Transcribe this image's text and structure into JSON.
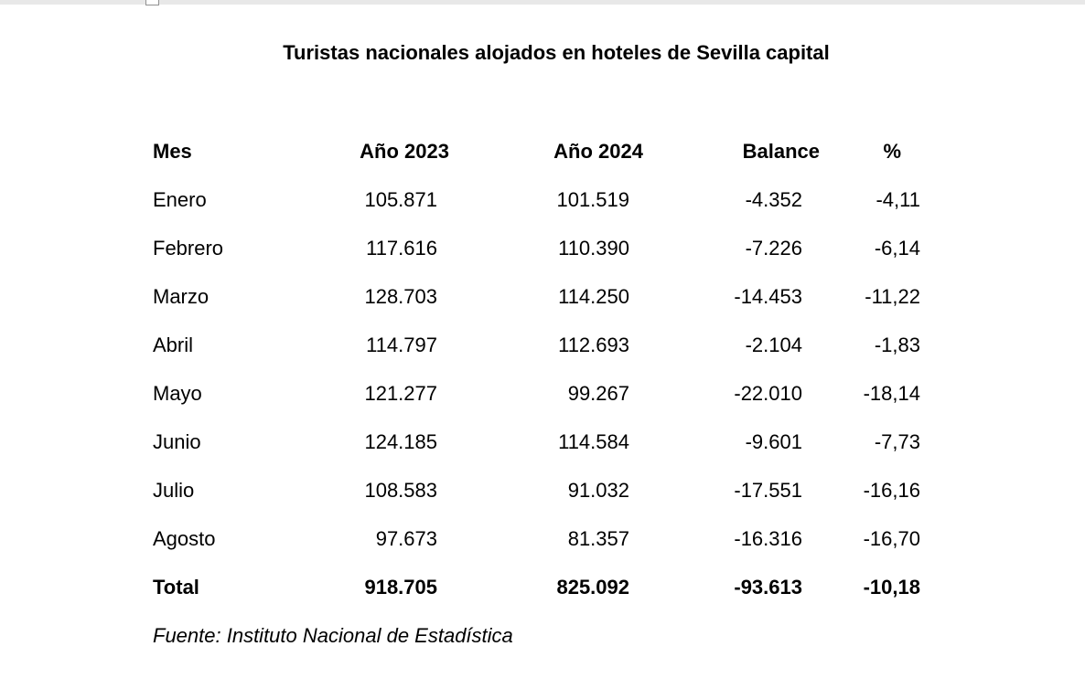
{
  "document": {
    "title": "Turistas nacionales alojados en hoteles de Sevilla capital",
    "source_note": "Fuente: Instituto Nacional de Estadística"
  },
  "chrome": {
    "top_bar_color": "#e8e8e8",
    "handle_border_color": "#919191"
  },
  "table": {
    "columns": [
      "Mes",
      "Año 2023",
      "Año 2024",
      "Balance",
      "%"
    ],
    "rows": [
      {
        "cells": [
          "Enero",
          "105.871",
          "101.519",
          "-4.352",
          "-4,11"
        ]
      },
      {
        "cells": [
          "Febrero",
          "117.616",
          "110.390",
          "-7.226",
          "-6,14"
        ]
      },
      {
        "cells": [
          "Marzo",
          "128.703",
          "114.250",
          "-14.453",
          "-11,22"
        ]
      },
      {
        "cells": [
          "Abril",
          "114.797",
          "112.693",
          "-2.104",
          "-1,83"
        ]
      },
      {
        "cells": [
          "Mayo",
          "121.277",
          "99.267",
          "-22.010",
          "-18,14"
        ]
      },
      {
        "cells": [
          "Junio",
          "124.185",
          "114.584",
          "-9.601",
          "-7,73"
        ]
      },
      {
        "cells": [
          "Julio",
          "108.583",
          "91.032",
          "-17.551",
          "-16,16"
        ]
      },
      {
        "cells": [
          "Agosto",
          "97.673",
          "81.357",
          "-16.316",
          "-16,70"
        ]
      }
    ],
    "total_row": {
      "cells": [
        "Total",
        "918.705",
        "825.092",
        "-93.613",
        "-10,18"
      ]
    }
  },
  "chart_data": {
    "type": "table",
    "title": "Turistas nacionales alojados en hoteles de Sevilla capital",
    "columns": [
      "Mes",
      "Año 2023",
      "Año 2024",
      "Balance",
      "%"
    ],
    "categories": [
      "Enero",
      "Febrero",
      "Marzo",
      "Abril",
      "Mayo",
      "Junio",
      "Julio",
      "Agosto"
    ],
    "series": [
      {
        "name": "Año 2023",
        "values": [
          105871,
          117616,
          128703,
          114797,
          121277,
          124185,
          108583,
          97673
        ]
      },
      {
        "name": "Año 2024",
        "values": [
          101519,
          110390,
          114250,
          112693,
          99267,
          114584,
          91032,
          81357
        ]
      },
      {
        "name": "Balance",
        "values": [
          -4352,
          -7226,
          -14453,
          -2104,
          -22010,
          -9601,
          -17551,
          -16316
        ]
      },
      {
        "name": "%",
        "values": [
          -4.11,
          -6.14,
          -11.22,
          -1.83,
          -18.14,
          -7.73,
          -16.16,
          -16.7
        ]
      }
    ],
    "totals": {
      "ano_2023": 918705,
      "ano_2024": 825092,
      "balance": -93613,
      "pct": -10.18
    },
    "source": "Instituto Nacional de Estadística"
  }
}
